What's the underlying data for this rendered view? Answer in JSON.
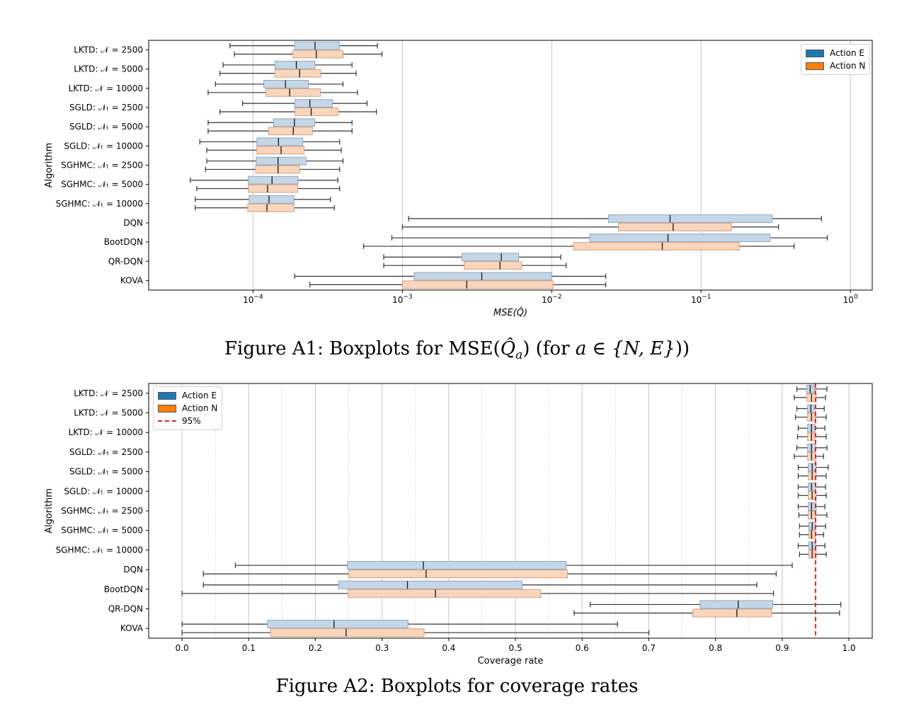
{
  "chart_data": [
    {
      "type": "box",
      "orientation": "horizontal",
      "xscale": "log",
      "xlabel": "MSE(Q̂)",
      "ylabel": "Algorithm",
      "xlim": [
        2e-05,
        1.4
      ],
      "xticks": [
        {
          "value": 0.0001,
          "base": "10",
          "exp": "−4"
        },
        {
          "value": 0.001,
          "base": "10",
          "exp": "−3"
        },
        {
          "value": 0.01,
          "base": "10",
          "exp": "−2"
        },
        {
          "value": 0.1,
          "base": "10",
          "exp": "−1"
        },
        {
          "value": 1,
          "base": "10",
          "exp": "0"
        }
      ],
      "grid": "vertical",
      "legend_position": "top-right",
      "categories": [
        "LKTD: 𝒩 = 2500",
        "LKTD: 𝒩 = 5000",
        "LKTD: 𝒩 = 10000",
        "SGLD: 𝒩ₜ = 2500",
        "SGLD: 𝒩ₜ = 5000",
        "SGLD: 𝒩ₜ = 10000",
        "SGHMC: 𝒩ₜ = 2500",
        "SGHMC: 𝒩ₜ = 5000",
        "SGHMC: 𝒩ₜ = 10000",
        "DQN",
        "BootDQN",
        "QR-DQN",
        "KOVA"
      ],
      "series": [
        {
          "name": "Action E",
          "color": "#1f77b4",
          "boxes": [
            [
              7e-05,
              0.00019,
              0.00026,
              0.00038,
              0.00068
            ],
            [
              6.3e-05,
              0.00014,
              0.000195,
              0.00026,
              0.00046
            ],
            [
              5.6e-05,
              0.000118,
              0.000165,
              0.000235,
              0.0004
            ],
            [
              8.5e-05,
              0.00019,
              0.00024,
              0.00034,
              0.00058
            ],
            [
              5e-05,
              0.000137,
              0.000189,
              0.000259,
              0.00046
            ],
            [
              4.4e-05,
              0.000106,
              0.000148,
              0.000215,
              0.00038
            ],
            [
              4.9e-05,
              0.000105,
              0.000147,
              0.000227,
              0.0004
            ],
            [
              3.8e-05,
              9.3e-05,
              0.000134,
              0.0002,
              0.00037
            ],
            [
              4.1e-05,
              9.4e-05,
              0.000128,
              0.000188,
              0.00033
            ],
            [
              0.0011,
              0.024,
              0.062,
              0.3,
              0.64
            ],
            [
              0.00085,
              0.018,
              0.06,
              0.29,
              0.7
            ],
            [
              0.00075,
              0.0025,
              0.0046,
              0.006,
              0.0115
            ],
            [
              0.00019,
              0.0012,
              0.0034,
              0.01,
              0.023
            ]
          ]
        },
        {
          "name": "Action N",
          "color": "#ff7f0e",
          "boxes": [
            [
              7.5e-05,
              0.000185,
              0.000265,
              0.0004,
              0.00073
            ],
            [
              6e-05,
              0.00014,
              0.000205,
              0.000283,
              0.00049
            ],
            [
              5e-05,
              0.000122,
              0.000176,
              0.000283,
              0.0005
            ],
            [
              6e-05,
              0.000191,
              0.000245,
              0.000371,
              0.00067
            ],
            [
              5e-05,
              0.000127,
              0.000186,
              0.00025,
              0.00046
            ],
            [
              4.9e-05,
              0.000106,
              0.000154,
              0.00022,
              0.00039
            ],
            [
              4.8e-05,
              0.000104,
              0.000147,
              0.000205,
              0.00038
            ],
            [
              4.2e-05,
              9.3e-05,
              0.000125,
              0.000199,
              0.00038
            ],
            [
              4.1e-05,
              9.2e-05,
              0.000124,
              0.000189,
              0.00035
            ],
            [
              0.001,
              0.028,
              0.065,
              0.16,
              0.33
            ],
            [
              0.00055,
              0.014,
              0.055,
              0.18,
              0.42
            ],
            [
              0.00075,
              0.0026,
              0.0045,
              0.0063,
              0.0125
            ],
            [
              0.00024,
              0.001,
              0.0027,
              0.0102,
              0.023
            ]
          ]
        }
      ]
    },
    {
      "type": "box",
      "orientation": "horizontal",
      "xscale": "linear",
      "xlabel": "Coverage rate",
      "ylabel": "Algorithm",
      "xlim": [
        -0.05,
        1.035
      ],
      "xticks": [
        0.0,
        0.1,
        0.2,
        0.3,
        0.4,
        0.5,
        0.6,
        0.7,
        0.8,
        0.9,
        1.0
      ],
      "xtick_labels": [
        "0.0",
        "0.1",
        "0.2",
        "0.3",
        "0.4",
        "0.5",
        "0.6",
        "0.7",
        "0.8",
        "0.9",
        "1.0"
      ],
      "grid": "vertical (minor dotted)",
      "legend_position": "top-left",
      "reference_line": {
        "name": "95%",
        "value": 0.95,
        "color": "#d62728",
        "style": "dashed"
      },
      "categories": [
        "LKTD: 𝒩 = 2500",
        "LKTD: 𝒩 = 5000",
        "LKTD: 𝒩 = 10000",
        "SGLD: 𝒩ₜ = 2500",
        "SGLD: 𝒩ₜ = 5000",
        "SGLD: 𝒩ₜ = 10000",
        "SGHMC: 𝒩ₜ = 2500",
        "SGHMC: 𝒩ₜ = 5000",
        "SGHMC: 𝒩ₜ = 10000",
        "DQN",
        "BootDQN",
        "QR-DQN",
        "KOVA"
      ],
      "series": [
        {
          "name": "Action E",
          "color": "#1f77b4",
          "boxes": [
            [
              0.922,
              0.937,
              0.942,
              0.948,
              0.967
            ],
            [
              0.922,
              0.938,
              0.943,
              0.948,
              0.963
            ],
            [
              0.924,
              0.938,
              0.944,
              0.949,
              0.964
            ],
            [
              0.922,
              0.938,
              0.944,
              0.95,
              0.967
            ],
            [
              0.924,
              0.939,
              0.945,
              0.951,
              0.969
            ],
            [
              0.924,
              0.939,
              0.944,
              0.95,
              0.965
            ],
            [
              0.924,
              0.939,
              0.944,
              0.951,
              0.964
            ],
            [
              0.926,
              0.94,
              0.945,
              0.95,
              0.965
            ],
            [
              0.924,
              0.94,
              0.945,
              0.95,
              0.964
            ],
            [
              0.08,
              0.248,
              0.362,
              0.576,
              0.915
            ],
            [
              0.032,
              0.235,
              0.338,
              0.51,
              0.862
            ],
            [
              0.612,
              0.777,
              0.834,
              0.886,
              0.988
            ],
            [
              0.0,
              0.128,
              0.228,
              0.339,
              0.653
            ]
          ]
        },
        {
          "name": "Action N",
          "color": "#ff7f0e",
          "boxes": [
            [
              0.918,
              0.937,
              0.944,
              0.951,
              0.965
            ],
            [
              0.92,
              0.938,
              0.944,
              0.949,
              0.966
            ],
            [
              0.923,
              0.938,
              0.944,
              0.949,
              0.966
            ],
            [
              0.918,
              0.938,
              0.944,
              0.95,
              0.962
            ],
            [
              0.924,
              0.939,
              0.945,
              0.951,
              0.966
            ],
            [
              0.924,
              0.939,
              0.945,
              0.951,
              0.966
            ],
            [
              0.925,
              0.939,
              0.944,
              0.95,
              0.967
            ],
            [
              0.926,
              0.94,
              0.944,
              0.95,
              0.962
            ],
            [
              0.926,
              0.94,
              0.945,
              0.951,
              0.966
            ],
            [
              0.032,
              0.25,
              0.366,
              0.578,
              0.891
            ],
            [
              0.0,
              0.249,
              0.38,
              0.538,
              0.887
            ],
            [
              0.588,
              0.766,
              0.832,
              0.884,
              0.986
            ],
            [
              0.0,
              0.133,
              0.246,
              0.363,
              0.7
            ]
          ]
        }
      ]
    }
  ],
  "captions": {
    "fig1_prefix": "Figure A1: Boxplots for MSE(",
    "fig1_math": "Q̂",
    "fig1_sub": "a",
    "fig1_suffix": ") (for ",
    "fig1_set": "a ∈ {N, E}",
    "fig1_end": "))",
    "fig2": "Figure A2: Boxplots for coverage rates"
  }
}
